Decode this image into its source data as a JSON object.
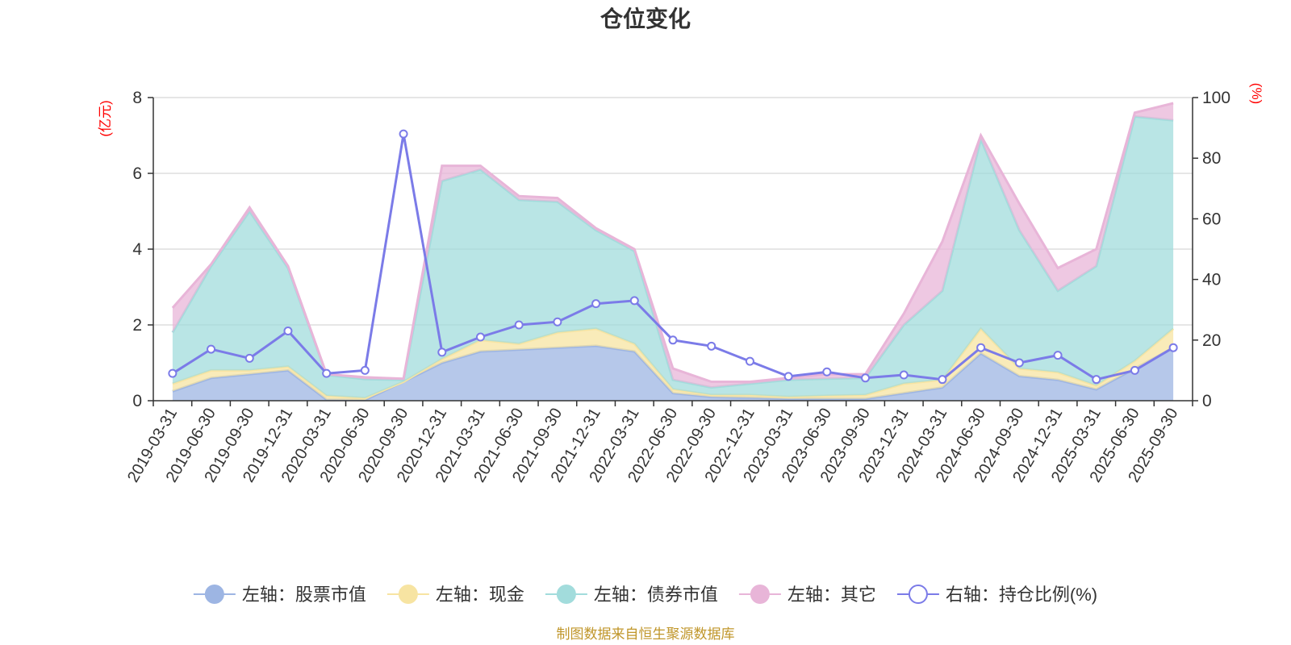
{
  "chart_data": {
    "type": "area",
    "title": "仓位变化",
    "left_axis_label": "(亿元)",
    "right_axis_label": "(%)",
    "ylim_left": [
      0,
      8
    ],
    "yticks_left": [
      0,
      2,
      4,
      6,
      8
    ],
    "ylim_right": [
      0,
      100
    ],
    "yticks_right": [
      0,
      20,
      40,
      60,
      80,
      100
    ],
    "grid": true,
    "stacked": true,
    "x": [
      "2019-03-31",
      "2019-06-30",
      "2019-09-30",
      "2019-12-31",
      "2020-03-31",
      "2020-06-30",
      "2020-09-30",
      "2020-12-31",
      "2021-03-31",
      "2021-06-30",
      "2021-09-30",
      "2021-12-31",
      "2022-03-31",
      "2022-06-30",
      "2022-09-30",
      "2022-12-31",
      "2023-03-31",
      "2023-06-30",
      "2023-09-30",
      "2023-12-31",
      "2024-03-31",
      "2024-06-30",
      "2024-09-30",
      "2024-12-31",
      "2025-03-31",
      "2025-06-30",
      "2025-09-30"
    ],
    "series": [
      {
        "name": "左轴：股票市值",
        "axis": "left",
        "color": "#9db5e3",
        "values": [
          0.25,
          0.6,
          0.7,
          0.8,
          0.03,
          0.02,
          0.5,
          1.0,
          1.3,
          1.35,
          1.4,
          1.45,
          1.3,
          0.2,
          0.1,
          0.08,
          0.05,
          0.05,
          0.05,
          0.2,
          0.35,
          1.25,
          0.65,
          0.55,
          0.3,
          0.85,
          1.4
        ]
      },
      {
        "name": "左轴：现金",
        "axis": "left",
        "color": "#f7e4a2",
        "values": [
          0.2,
          0.2,
          0.1,
          0.1,
          0.1,
          0.05,
          0.0,
          0.1,
          0.3,
          0.15,
          0.4,
          0.45,
          0.2,
          0.1,
          0.05,
          0.07,
          0.05,
          0.08,
          0.1,
          0.25,
          0.2,
          0.65,
          0.2,
          0.2,
          0.1,
          0.2,
          0.5
        ]
      },
      {
        "name": "左轴：债券市值",
        "axis": "left",
        "color": "#a2dcdc",
        "values": [
          1.35,
          2.75,
          4.2,
          2.6,
          0.55,
          0.5,
          0.05,
          4.7,
          4.5,
          3.8,
          3.45,
          2.6,
          2.45,
          0.25,
          0.2,
          0.3,
          0.45,
          0.45,
          0.45,
          1.55,
          2.35,
          5.0,
          3.65,
          2.15,
          3.15,
          6.45,
          5.5
        ]
      },
      {
        "name": "左轴：其它",
        "axis": "left",
        "color": "#e8b5d8",
        "values": [
          0.65,
          0.05,
          0.1,
          0.05,
          0.02,
          0.05,
          0.03,
          0.4,
          0.1,
          0.1,
          0.1,
          0.05,
          0.05,
          0.3,
          0.15,
          0.05,
          0.05,
          0.12,
          0.1,
          0.3,
          1.3,
          0.1,
          0.7,
          0.6,
          0.45,
          0.1,
          0.45
        ]
      },
      {
        "name": "右轴：持仓比例(%)",
        "axis": "right",
        "color": "#7b7be8",
        "type": "line",
        "values": [
          9,
          17,
          14,
          23,
          9,
          10,
          88,
          16,
          21,
          25,
          26,
          32,
          33,
          20,
          18,
          13,
          8,
          9.5,
          7.5,
          8.5,
          7,
          17.5,
          12.5,
          15,
          7,
          10,
          17.5
        ]
      }
    ]
  },
  "legend": {
    "items": [
      {
        "label": "左轴：股票市值",
        "color": "#9db5e3",
        "kind": "filled"
      },
      {
        "label": "左轴：现金",
        "color": "#f7e4a2",
        "kind": "filled"
      },
      {
        "label": "左轴：债券市值",
        "color": "#a2dcdc",
        "kind": "filled"
      },
      {
        "label": "左轴：其它",
        "color": "#e8b5d8",
        "kind": "filled"
      },
      {
        "label": "右轴：持仓比例(%)",
        "color": "#7b7be8",
        "kind": "hollow"
      }
    ]
  },
  "source": "制图数据来自恒生聚源数据库",
  "colors": {
    "axis_label_red": "#ff0000",
    "source_text": "#c0962a",
    "grid": "#cccccc",
    "axis": "#333333"
  }
}
